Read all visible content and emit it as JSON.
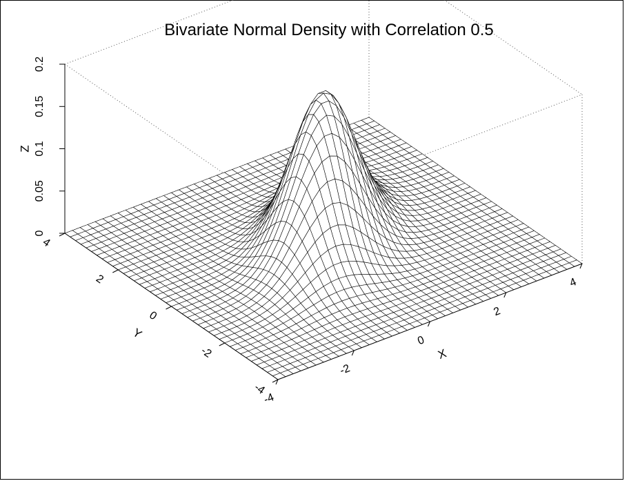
{
  "chart_data": {
    "type": "surface",
    "title": "Bivariate Normal Density with Correlation 0.5",
    "xlabel": "X",
    "ylabel": "Y",
    "zlabel": "Z",
    "xlim": [
      -4,
      4
    ],
    "ylim": [
      -4,
      4
    ],
    "zlim": [
      0,
      0.2
    ],
    "rho": 0.5,
    "grid_n": 41,
    "x_ticks": [
      {
        "v": -4,
        "label": "-4"
      },
      {
        "v": -2,
        "label": "-2"
      },
      {
        "v": 0,
        "label": "0"
      },
      {
        "v": 2,
        "label": "2"
      },
      {
        "v": 4,
        "label": "4"
      }
    ],
    "y_ticks": [
      {
        "v": -4,
        "label": "-4"
      },
      {
        "v": -2,
        "label": "-2"
      },
      {
        "v": 0,
        "label": "0"
      },
      {
        "v": 2,
        "label": "2"
      },
      {
        "v": 4,
        "label": "4"
      }
    ],
    "z_ticks": [
      {
        "v": 0,
        "label": "0"
      },
      {
        "v": 0.05,
        "label": "0.05"
      },
      {
        "v": 0.1,
        "label": "0.1"
      },
      {
        "v": 0.15,
        "label": "0.15"
      },
      {
        "v": 0.2,
        "label": "0.2"
      }
    ],
    "box": true
  }
}
